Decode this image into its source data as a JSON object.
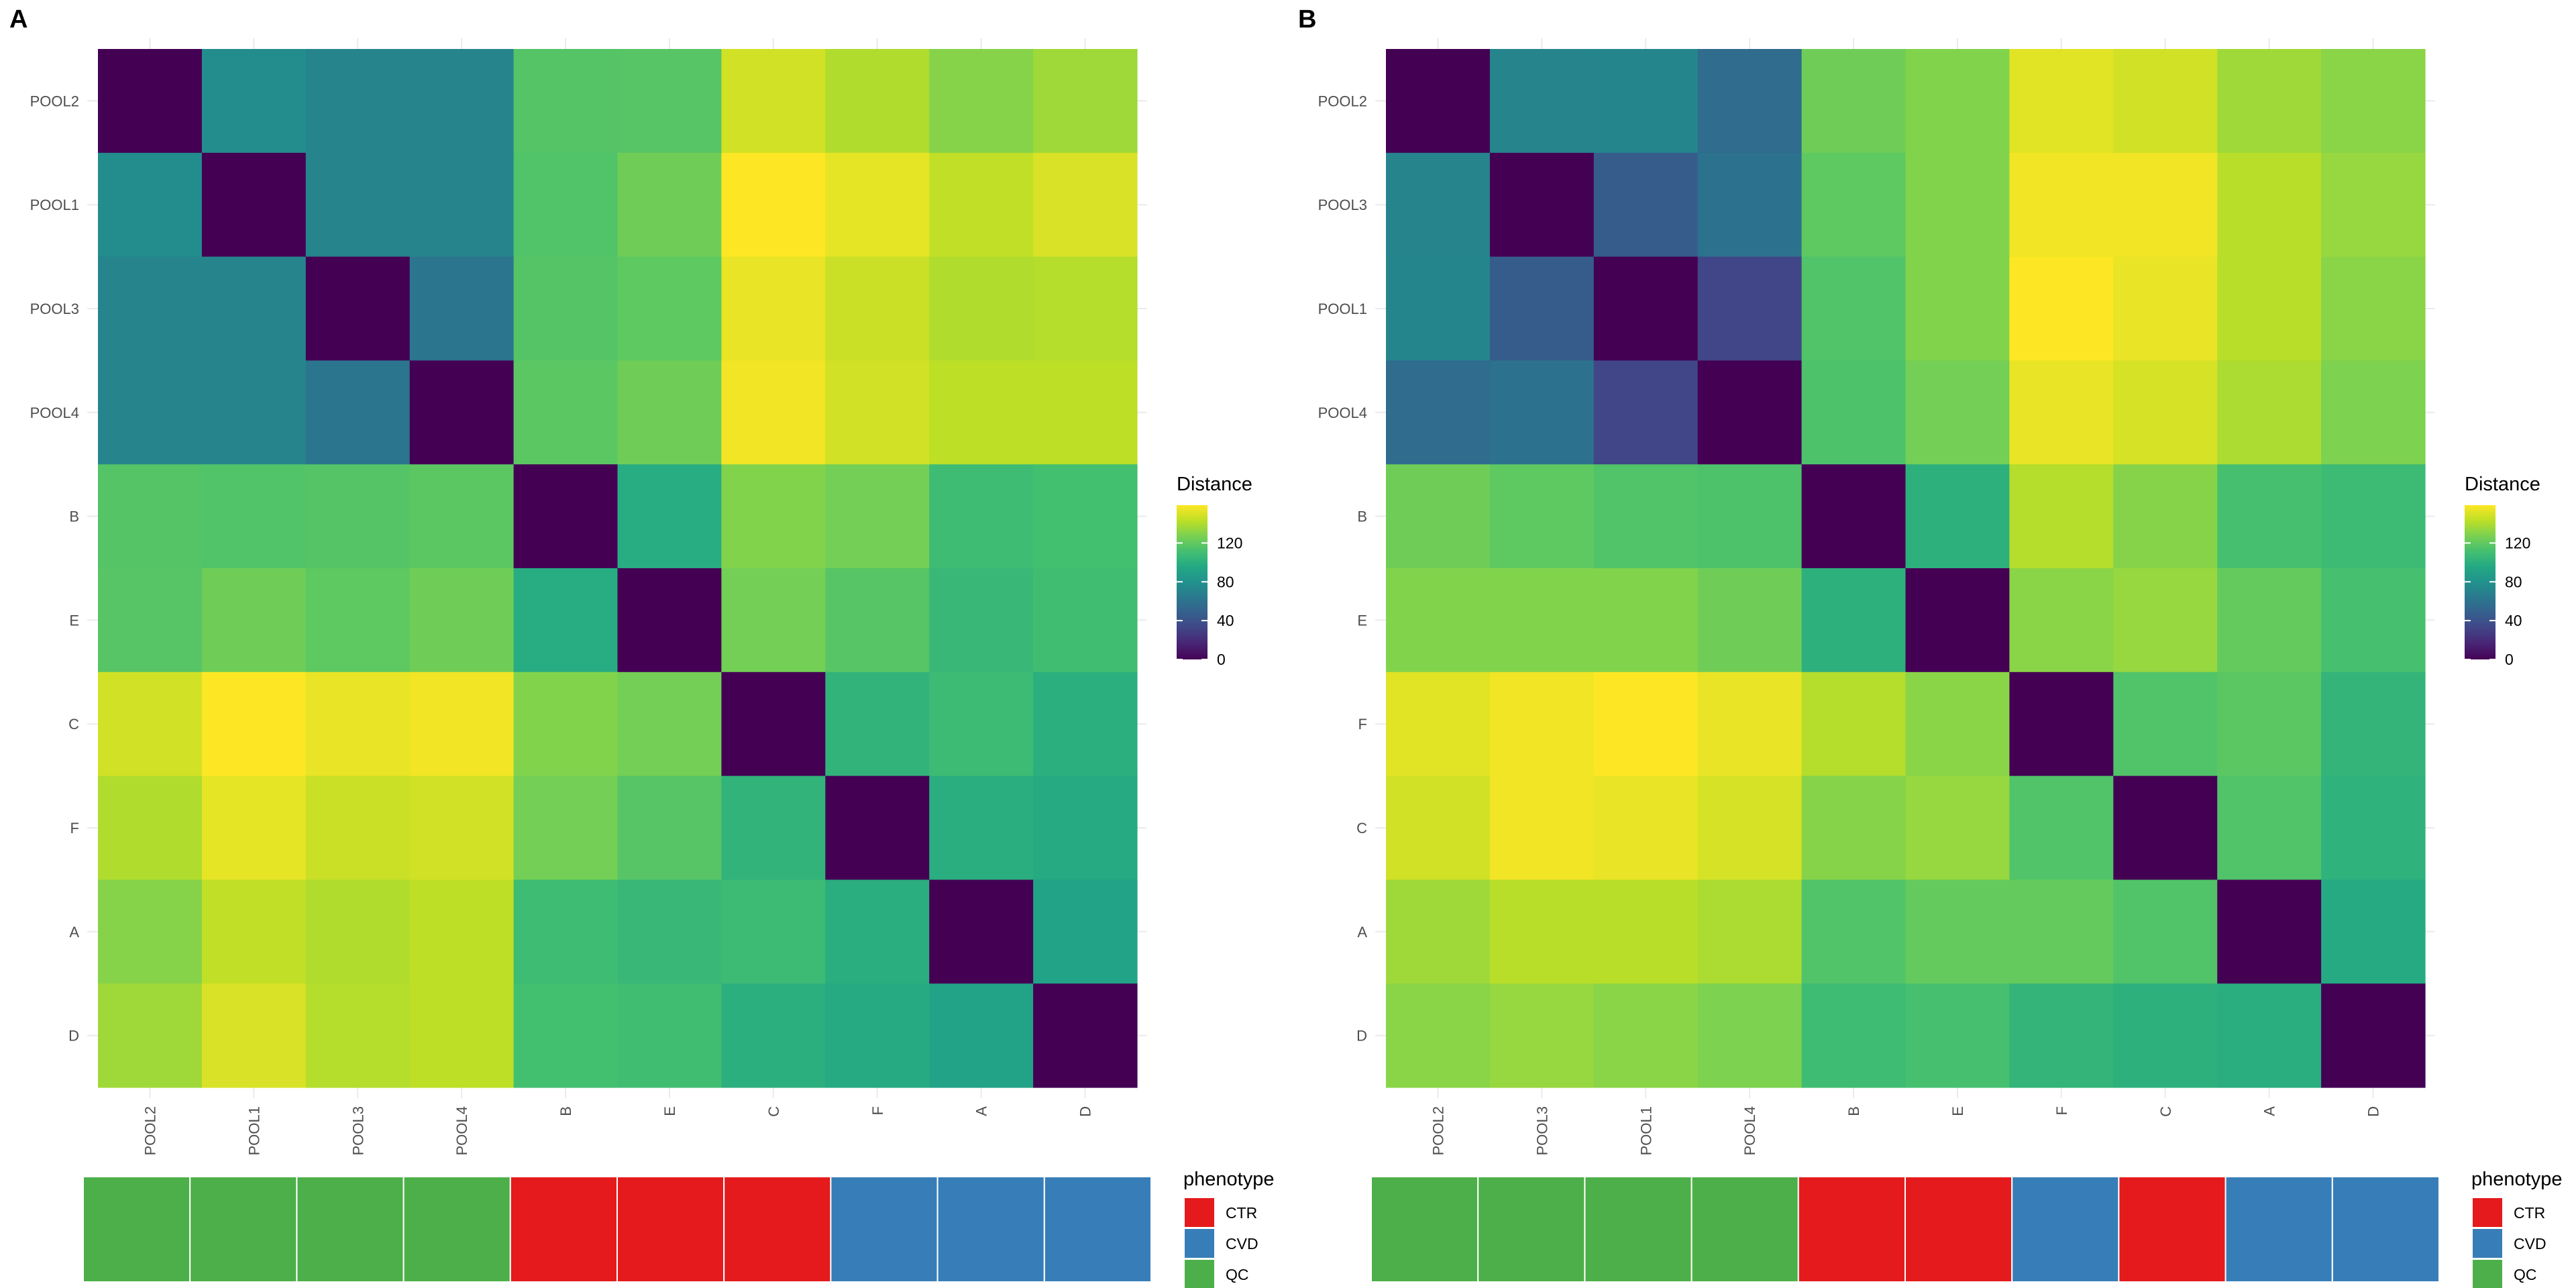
{
  "chart_data": [
    {
      "type": "heatmap",
      "panel_label": "A",
      "title": "",
      "rows": [
        "POOL2",
        "POOL1",
        "POOL3",
        "POOL4",
        "B",
        "E",
        "C",
        "F",
        "A",
        "D"
      ],
      "cols": [
        "POOL2",
        "POOL1",
        "POOL3",
        "POOL4",
        "B",
        "E",
        "C",
        "F",
        "A",
        "D"
      ],
      "values": [
        [
          0,
          77,
          71,
          71,
          116,
          117,
          148,
          140,
          130,
          136
        ],
        [
          77,
          0,
          71,
          71,
          115,
          124,
          159,
          153,
          144,
          150
        ],
        [
          71,
          71,
          0,
          62,
          116,
          119,
          154,
          146,
          140,
          141
        ],
        [
          71,
          71,
          62,
          0,
          118,
          124,
          156,
          148,
          143,
          143
        ],
        [
          116,
          115,
          116,
          118,
          0,
          98,
          129,
          125,
          109,
          111
        ],
        [
          117,
          124,
          119,
          124,
          98,
          0,
          125,
          117,
          106,
          110
        ],
        [
          148,
          159,
          154,
          156,
          129,
          125,
          0,
          103,
          108,
          100
        ],
        [
          140,
          153,
          146,
          148,
          125,
          117,
          103,
          0,
          99,
          97
        ],
        [
          130,
          144,
          140,
          143,
          109,
          106,
          108,
          99,
          0,
          91
        ],
        [
          136,
          150,
          141,
          143,
          111,
          110,
          100,
          97,
          91,
          0
        ]
      ],
      "colorscale": "viridis",
      "zlim": [
        0,
        159
      ],
      "colorbar": {
        "title": "Distance",
        "ticks": [
          0,
          40,
          80,
          120
        ]
      },
      "annotation": {
        "title": "phenotype",
        "values": [
          "QC",
          "QC",
          "QC",
          "QC",
          "CTR",
          "CTR",
          "CTR",
          "CVD",
          "CVD",
          "CVD"
        ]
      }
    },
    {
      "type": "heatmap",
      "panel_label": "B",
      "title": "",
      "rows": [
        "POOL2",
        "POOL3",
        "POOL1",
        "POOL4",
        "B",
        "E",
        "F",
        "C",
        "A",
        "D"
      ],
      "cols": [
        "POOL2",
        "POOL3",
        "POOL1",
        "POOL4",
        "B",
        "E",
        "F",
        "C",
        "A",
        "D"
      ],
      "values": [
        [
          0,
          71,
          72,
          56,
          124,
          129,
          152,
          148,
          136,
          131
        ],
        [
          71,
          0,
          46,
          60,
          119,
          129,
          156,
          156,
          142,
          134
        ],
        [
          72,
          46,
          0,
          33,
          115,
          129,
          159,
          154,
          142,
          131
        ],
        [
          56,
          60,
          33,
          0,
          114,
          125,
          154,
          149,
          139,
          128
        ],
        [
          124,
          119,
          115,
          114,
          0,
          101,
          141,
          130,
          112,
          108
        ],
        [
          129,
          129,
          129,
          124,
          101,
          0,
          131,
          134,
          121,
          112
        ],
        [
          152,
          156,
          159,
          154,
          141,
          131,
          0,
          115,
          118,
          104
        ],
        [
          148,
          156,
          154,
          149,
          130,
          134,
          115,
          0,
          115,
          102
        ],
        [
          136,
          142,
          142,
          139,
          115,
          121,
          121,
          115,
          0,
          97
        ],
        [
          131,
          134,
          131,
          128,
          109,
          112,
          104,
          101,
          99,
          0
        ]
      ],
      "colorscale": "viridis",
      "zlim": [
        0,
        159
      ],
      "colorbar": {
        "title": "Distance",
        "ticks": [
          0,
          40,
          80,
          120
        ]
      },
      "annotation": {
        "title": "phenotype",
        "values": [
          "QC",
          "QC",
          "QC",
          "QC",
          "CTR",
          "CTR",
          "CVD",
          "CTR",
          "CVD",
          "CVD"
        ]
      }
    }
  ],
  "phenotype_legend": [
    {
      "label": "CTR",
      "color": "#e41a1c"
    },
    {
      "label": "CVD",
      "color": "#377eb8"
    },
    {
      "label": "QC",
      "color": "#4daf4a"
    }
  ]
}
